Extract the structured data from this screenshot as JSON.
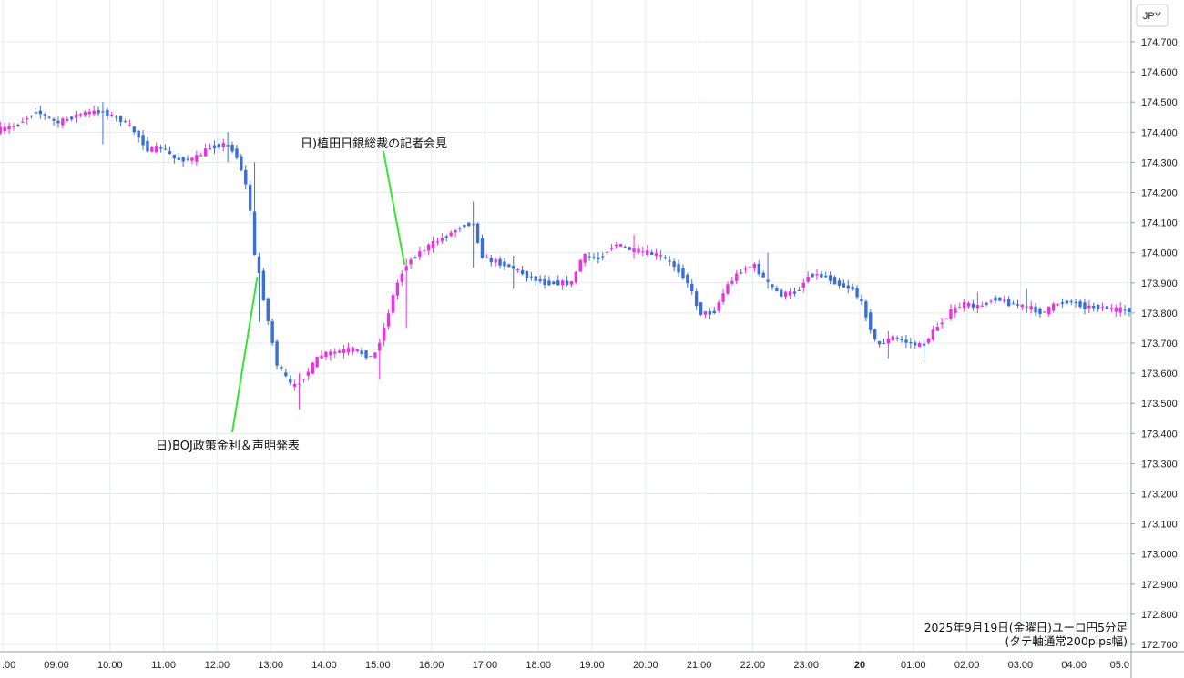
{
  "chart_data": {
    "type": "candlestick",
    "currency_label": "JPY",
    "caption_line1": "2025年9月19日(金曜日)ユーロ円5分足",
    "caption_line2": "(タテ軸通常200pips幅)",
    "ylim": [
      172.65,
      174.75
    ],
    "y_ticks": [
      "174.700",
      "174.600",
      "174.500",
      "174.400",
      "174.300",
      "174.200",
      "174.100",
      "174.000",
      "173.900",
      "173.800",
      "173.700",
      "173.600",
      "173.500",
      "173.400",
      "173.300",
      "173.200",
      "173.100",
      "173.000",
      "172.900",
      "172.800",
      "172.700"
    ],
    "x_ticks": [
      ":00",
      "09:00",
      "10:00",
      "11:00",
      "12:00",
      "13:00",
      "14:00",
      "15:00",
      "16:00",
      "17:00",
      "18:00",
      "19:00",
      "20:00",
      "21:00",
      "22:00",
      "23:00",
      "20",
      "01:00",
      "02:00",
      "03:00",
      "04:00",
      "05:0"
    ],
    "x_tick_times": [
      8.0,
      9,
      10,
      11,
      12,
      13,
      14,
      15,
      16,
      17,
      18,
      19,
      20,
      21,
      22,
      23,
      24,
      25,
      26,
      27,
      28,
      29.0
    ],
    "up_color": "#e833e0",
    "down_color": "#3a6fd4",
    "grid": true,
    "annotations": [
      {
        "text": "日)BOJ政策金利＆声明発表",
        "time": 12.75,
        "price": 173.92
      },
      {
        "text": "日)植田日銀総裁の記者会見",
        "time": 15.5,
        "price": 173.96
      }
    ],
    "price_path": [
      [
        7.95,
        174.405
      ],
      [
        8.3,
        174.42
      ],
      [
        8.7,
        174.47
      ],
      [
        9.1,
        174.43
      ],
      [
        9.5,
        174.46
      ],
      [
        9.9,
        174.47
      ],
      [
        10.3,
        174.44
      ],
      [
        10.55,
        174.4
      ],
      [
        10.8,
        174.34
      ],
      [
        11.05,
        174.35
      ],
      [
        11.3,
        174.31
      ],
      [
        11.65,
        174.31
      ],
      [
        11.95,
        174.35
      ],
      [
        12.2,
        174.36
      ],
      [
        12.4,
        174.34
      ],
      [
        12.55,
        174.27
      ],
      [
        12.68,
        174.18
      ],
      [
        12.78,
        173.99
      ],
      [
        12.87,
        173.93
      ],
      [
        13.0,
        173.8
      ],
      [
        13.2,
        173.63
      ],
      [
        13.5,
        173.55
      ],
      [
        13.8,
        173.61
      ],
      [
        14.0,
        173.66
      ],
      [
        14.3,
        173.67
      ],
      [
        14.6,
        173.68
      ],
      [
        15.0,
        173.65
      ],
      [
        15.2,
        173.75
      ],
      [
        15.4,
        173.88
      ],
      [
        15.6,
        173.96
      ],
      [
        15.85,
        174.0
      ],
      [
        16.1,
        174.03
      ],
      [
        16.4,
        174.06
      ],
      [
        16.65,
        174.09
      ],
      [
        16.85,
        174.1
      ],
      [
        17.05,
        173.98
      ],
      [
        17.3,
        173.97
      ],
      [
        17.6,
        173.95
      ],
      [
        17.9,
        173.92
      ],
      [
        18.2,
        173.9
      ],
      [
        18.5,
        173.9
      ],
      [
        18.7,
        173.9
      ],
      [
        18.9,
        173.99
      ],
      [
        19.2,
        173.98
      ],
      [
        19.5,
        174.03
      ],
      [
        19.8,
        174.01
      ],
      [
        20.1,
        174.0
      ],
      [
        20.35,
        173.99
      ],
      [
        20.6,
        173.96
      ],
      [
        20.85,
        173.91
      ],
      [
        21.1,
        173.8
      ],
      [
        21.35,
        173.8
      ],
      [
        21.6,
        173.89
      ],
      [
        21.85,
        173.94
      ],
      [
        22.1,
        173.96
      ],
      [
        22.35,
        173.9
      ],
      [
        22.6,
        173.86
      ],
      [
        22.9,
        173.87
      ],
      [
        23.15,
        173.93
      ],
      [
        23.45,
        173.92
      ],
      [
        23.75,
        173.89
      ],
      [
        23.95,
        173.88
      ],
      [
        24.15,
        173.82
      ],
      [
        24.4,
        173.69
      ],
      [
        24.7,
        173.72
      ],
      [
        25.0,
        173.7
      ],
      [
        25.25,
        173.69
      ],
      [
        25.5,
        173.75
      ],
      [
        25.75,
        173.8
      ],
      [
        26.0,
        173.83
      ],
      [
        26.3,
        173.82
      ],
      [
        26.6,
        173.85
      ],
      [
        26.9,
        173.83
      ],
      [
        27.2,
        173.82
      ],
      [
        27.5,
        173.8
      ],
      [
        27.75,
        173.83
      ],
      [
        28.0,
        173.84
      ],
      [
        28.3,
        173.82
      ],
      [
        28.6,
        173.82
      ],
      [
        28.85,
        173.81
      ],
      [
        29.05,
        173.81
      ]
    ],
    "wick_spikes": [
      [
        9.85,
        174.5,
        174.36
      ],
      [
        12.2,
        174.4,
        174.3
      ],
      [
        12.68,
        174.3,
        174.1
      ],
      [
        12.8,
        174.0,
        173.77
      ],
      [
        13.5,
        173.6,
        173.48
      ],
      [
        15.0,
        173.69,
        173.58
      ],
      [
        15.5,
        173.98,
        173.75
      ],
      [
        16.8,
        174.17,
        173.95
      ],
      [
        17.5,
        173.99,
        173.88
      ],
      [
        19.8,
        174.06,
        173.98
      ],
      [
        22.3,
        174.0,
        173.88
      ],
      [
        24.55,
        173.74,
        173.65
      ],
      [
        25.2,
        173.71,
        173.65
      ],
      [
        26.2,
        173.87,
        173.8
      ],
      [
        27.1,
        173.88,
        173.8
      ]
    ]
  }
}
